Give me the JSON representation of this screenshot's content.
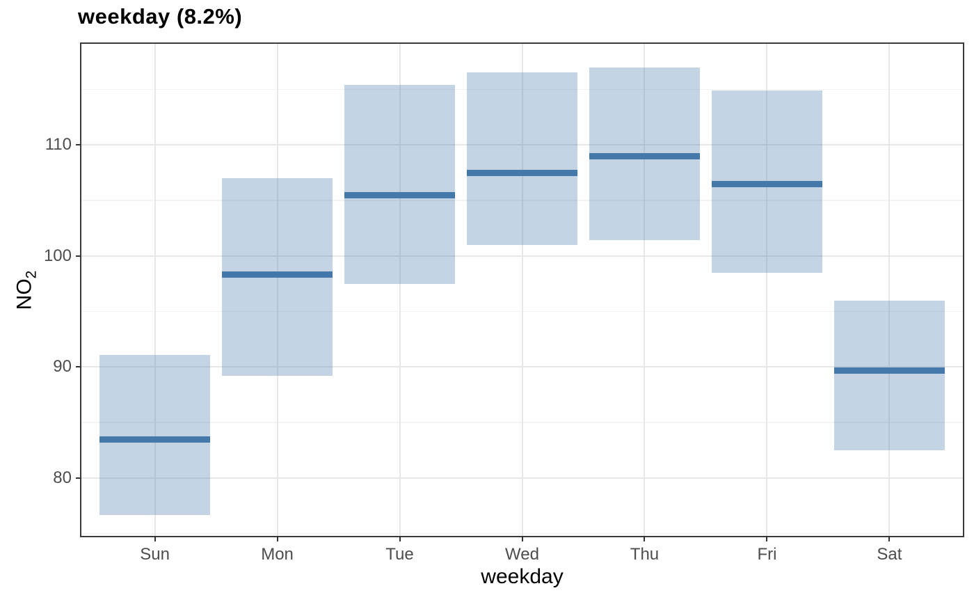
{
  "chart_data": {
    "type": "bar",
    "variant": "crossbar-interval",
    "title": "weekday (8.2%)",
    "xlabel": "weekday",
    "ylabel": "NO2",
    "ylabel_parts": {
      "base": "NO",
      "sub": "2"
    },
    "categories": [
      "Sun",
      "Mon",
      "Tue",
      "Wed",
      "Thu",
      "Fri",
      "Sat"
    ],
    "series": [
      {
        "name": "lower",
        "values": [
          76.7,
          89.2,
          97.5,
          101.0,
          101.4,
          98.5,
          82.5
        ]
      },
      {
        "name": "middle",
        "values": [
          83.5,
          98.3,
          105.5,
          107.5,
          109.0,
          106.5,
          89.7
        ]
      },
      {
        "name": "upper",
        "values": [
          91.1,
          107.0,
          115.4,
          116.5,
          117.0,
          114.9,
          96.0
        ]
      }
    ],
    "ylim": [
      74.8,
      119.1
    ],
    "y_major_ticks": [
      80,
      90,
      100,
      110
    ],
    "y_minor_ticks": [
      75,
      85,
      95,
      105,
      115
    ],
    "grid": true,
    "legend_position": "none",
    "colors": {
      "box_fill": "rgba(70,120,170,0.32)",
      "box_fill_hex_on_white": "#c4d4e4",
      "mid_line": "#4478ab",
      "grid_major": "#e7e7e7",
      "grid_minor": "#f3f3f3",
      "panel_border": "#3a3a3a",
      "tick_label": "#4d4d4d",
      "title_text": "#000000"
    }
  }
}
